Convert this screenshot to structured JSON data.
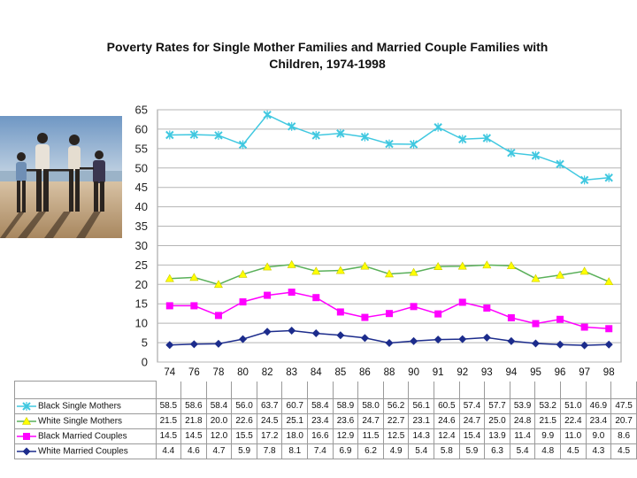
{
  "chart_data": {
    "type": "line",
    "title": "Poverty Rates for Single Mother Families and Married Couple Families with Children, 1974-1998",
    "title_lines": [
      "Poverty Rates for Single Mother Families and Married Couple Families with",
      "Children, 1974-1998"
    ],
    "categories": [
      "74",
      "76",
      "78",
      "80",
      "82",
      "83",
      "84",
      "85",
      "86",
      "88",
      "90",
      "91",
      "92",
      "93",
      "94",
      "95",
      "96",
      "97",
      "98"
    ],
    "ylim": [
      0,
      65
    ],
    "yticks": [
      "0",
      "5",
      "10",
      "15",
      "20",
      "25",
      "30",
      "35",
      "40",
      "45",
      "50",
      "55",
      "60",
      "65"
    ],
    "grid": true,
    "legend": "table-below",
    "series": [
      {
        "name": "Black Single Mothers",
        "color": "#40c8e0",
        "marker": "x",
        "values": [
          58.5,
          58.6,
          58.4,
          56.0,
          63.7,
          60.7,
          58.4,
          58.9,
          58.0,
          56.2,
          56.1,
          60.5,
          57.4,
          57.7,
          53.9,
          53.2,
          51.0,
          46.9,
          47.5
        ],
        "labels": [
          "58.5",
          "58.6",
          "58.4",
          "56.0",
          "63.7",
          "60.7",
          "58.4",
          "58.9",
          "58.0",
          "56.2",
          "56.1",
          "60.5",
          "57.4",
          "57.7",
          "53.9",
          "53.2",
          "51.0",
          "46.9",
          "47.5"
        ]
      },
      {
        "name": "White Single Mothers",
        "color": "#ffff00",
        "line_color": "#5ab05a",
        "marker": "triangle",
        "values": [
          21.5,
          21.8,
          20.0,
          22.6,
          24.5,
          25.1,
          23.4,
          23.6,
          24.7,
          22.7,
          23.1,
          24.6,
          24.7,
          25.0,
          24.8,
          21.5,
          22.4,
          23.4,
          20.7
        ],
        "labels": [
          "21.5",
          "21.8",
          "20.0",
          "22.6",
          "24.5",
          "25.1",
          "23.4",
          "23.6",
          "24.7",
          "22.7",
          "23.1",
          "24.6",
          "24.7",
          "25.0",
          "24.8",
          "21.5",
          "22.4",
          "23.4",
          "20.7"
        ]
      },
      {
        "name": "Black Married Couples",
        "color": "#ff00ff",
        "marker": "square",
        "values": [
          14.5,
          14.5,
          12.0,
          15.5,
          17.2,
          18.0,
          16.6,
          12.9,
          11.5,
          12.5,
          14.3,
          12.4,
          15.4,
          13.9,
          11.4,
          9.9,
          11.0,
          9.0,
          8.6
        ],
        "labels": [
          "14.5",
          "14.5",
          "12.0",
          "15.5",
          "17.2",
          "18.0",
          "16.6",
          "12.9",
          "11.5",
          "12.5",
          "14.3",
          "12.4",
          "15.4",
          "13.9",
          "11.4",
          "9.9",
          "11.0",
          "9.0",
          "8.6"
        ]
      },
      {
        "name": "White Married Couples",
        "color": "#1c2c8c",
        "marker": "diamond",
        "values": [
          4.4,
          4.6,
          4.7,
          5.9,
          7.8,
          8.1,
          7.4,
          6.9,
          6.2,
          4.9,
          5.4,
          5.8,
          5.9,
          6.3,
          5.4,
          4.8,
          4.5,
          4.3,
          4.5
        ],
        "labels": [
          "4.4",
          "4.6",
          "4.7",
          "5.9",
          "7.8",
          "8.1",
          "7.4",
          "6.9",
          "6.2",
          "4.9",
          "5.4",
          "5.8",
          "5.9",
          "6.3",
          "5.4",
          "4.8",
          "4.5",
          "4.3",
          "4.5"
        ]
      }
    ]
  },
  "photo": {
    "icon": "family-on-beach-photo",
    "sky": "#8fb2d6",
    "sand": "#c9a986"
  }
}
